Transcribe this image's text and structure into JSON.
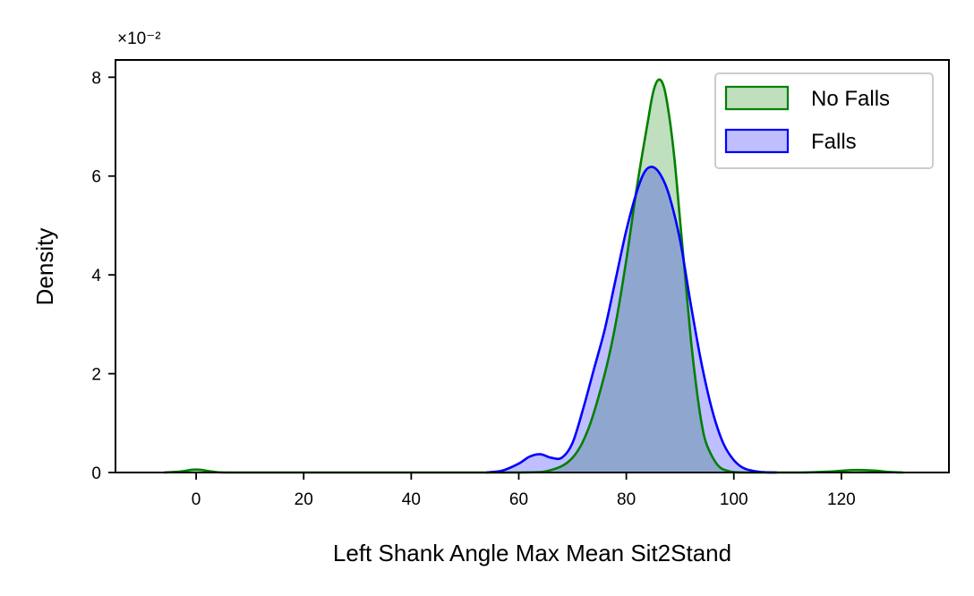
{
  "chart_data": {
    "type": "area",
    "title": "",
    "xlabel": "Left Shank Angle Max Mean Sit2Stand",
    "ylabel": "Density",
    "y_multiplier_label": "×10⁻²",
    "xlim": [
      -15,
      140
    ],
    "ylim": [
      0,
      8.35
    ],
    "x_ticks": [
      0,
      20,
      40,
      60,
      80,
      100,
      120
    ],
    "y_ticks": [
      0,
      2,
      4,
      6,
      8
    ],
    "grid": false,
    "legend": {
      "placement": "top-right"
    },
    "series": [
      {
        "name": "No Falls",
        "line_color": "#008000",
        "fill_color": "#008000",
        "fill_opacity": 0.25,
        "points": [
          [
            -6,
            0.0
          ],
          [
            -3,
            0.02
          ],
          [
            0,
            0.06
          ],
          [
            3,
            0.02
          ],
          [
            6,
            0.0
          ],
          [
            20,
            0.0
          ],
          [
            40,
            0.0
          ],
          [
            60,
            0.0
          ],
          [
            66,
            0.05
          ],
          [
            70,
            0.3
          ],
          [
            73,
            0.9
          ],
          [
            76,
            2.0
          ],
          [
            78,
            3.0
          ],
          [
            80,
            4.3
          ],
          [
            82,
            5.8
          ],
          [
            84,
            7.1
          ],
          [
            85,
            7.7
          ],
          [
            86,
            7.95
          ],
          [
            87,
            7.8
          ],
          [
            88,
            7.2
          ],
          [
            89,
            6.3
          ],
          [
            90,
            5.1
          ],
          [
            91,
            3.9
          ],
          [
            92,
            2.7
          ],
          [
            93,
            1.75
          ],
          [
            94,
            1.0
          ],
          [
            95,
            0.55
          ],
          [
            97,
            0.15
          ],
          [
            99,
            0.03
          ],
          [
            102,
            0.0
          ],
          [
            112,
            0.0
          ],
          [
            118,
            0.02
          ],
          [
            122,
            0.05
          ],
          [
            126,
            0.04
          ],
          [
            129,
            0.01
          ],
          [
            131.5,
            0.0
          ]
        ]
      },
      {
        "name": "Falls",
        "line_color": "#0000ff",
        "fill_color": "#0000ff",
        "fill_opacity": 0.25,
        "points": [
          [
            54,
            0.0
          ],
          [
            57,
            0.04
          ],
          [
            60,
            0.18
          ],
          [
            62,
            0.32
          ],
          [
            64,
            0.37
          ],
          [
            66,
            0.3
          ],
          [
            68,
            0.3
          ],
          [
            70,
            0.6
          ],
          [
            72,
            1.3
          ],
          [
            74,
            2.1
          ],
          [
            76,
            2.9
          ],
          [
            78,
            3.9
          ],
          [
            80,
            4.9
          ],
          [
            82,
            5.7
          ],
          [
            83.5,
            6.1
          ],
          [
            85,
            6.18
          ],
          [
            86.5,
            6.0
          ],
          [
            88,
            5.6
          ],
          [
            90,
            4.7
          ],
          [
            92,
            3.4
          ],
          [
            94,
            2.2
          ],
          [
            96,
            1.25
          ],
          [
            98,
            0.6
          ],
          [
            100,
            0.25
          ],
          [
            102,
            0.08
          ],
          [
            105,
            0.01
          ],
          [
            108,
            0.0
          ]
        ]
      }
    ]
  }
}
